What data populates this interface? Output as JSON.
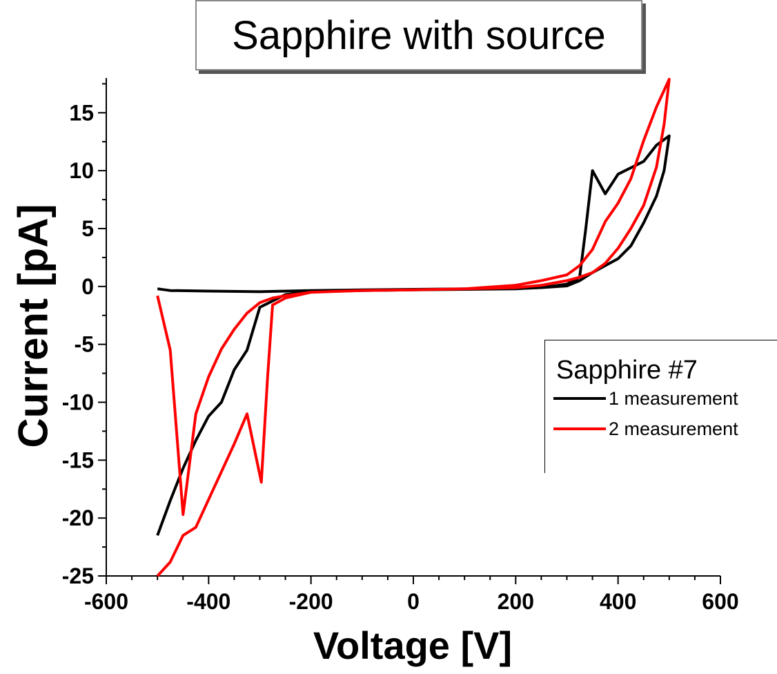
{
  "chart_data": {
    "type": "line",
    "title": "Sapphire with source",
    "xlabel": "Voltage [V]",
    "ylabel": "Current [pA]",
    "xlim": [
      -600,
      600
    ],
    "ylim": [
      -25,
      18
    ],
    "xticks": [
      -600,
      -400,
      -200,
      0,
      200,
      400,
      600
    ],
    "xtick_labels": [
      "-600",
      "-400",
      "-200",
      "0",
      "200",
      "400",
      "600"
    ],
    "yticks": [
      -25,
      -20,
      -15,
      -10,
      -5,
      0,
      5,
      10,
      15
    ],
    "ytick_labels": [
      "-25",
      "-20",
      "-15",
      "-10",
      "-5",
      "0",
      "5",
      "10",
      "15"
    ],
    "grid": false,
    "legend": {
      "title": "Sapphire #7",
      "position": "right"
    },
    "series": [
      {
        "name": "1 measurement",
        "color": "#000000",
        "points": [
          [
            -500,
            -0.2
          ],
          [
            -475,
            -0.35
          ],
          [
            -400,
            -0.4
          ],
          [
            -300,
            -0.45
          ],
          [
            -200,
            -0.35
          ],
          [
            -100,
            -0.3
          ],
          [
            0,
            -0.25
          ],
          [
            100,
            -0.2
          ],
          [
            200,
            -0.15
          ],
          [
            250,
            -0.1
          ],
          [
            300,
            0.2
          ],
          [
            325,
            0.8
          ],
          [
            337,
            5.0
          ],
          [
            350,
            10.0
          ],
          [
            375,
            8.0
          ],
          [
            400,
            9.7
          ],
          [
            450,
            10.8
          ],
          [
            475,
            12.2
          ],
          [
            500,
            13.0
          ],
          [
            490,
            10.0
          ],
          [
            475,
            7.8
          ],
          [
            450,
            5.5
          ],
          [
            425,
            3.5
          ],
          [
            400,
            2.4
          ],
          [
            375,
            1.8
          ],
          [
            350,
            1.2
          ],
          [
            325,
            0.5
          ],
          [
            300,
            0.05
          ],
          [
            250,
            -0.1
          ],
          [
            200,
            -0.2
          ],
          [
            100,
            -0.25
          ],
          [
            0,
            -0.3
          ],
          [
            -100,
            -0.35
          ],
          [
            -200,
            -0.45
          ],
          [
            -250,
            -0.7
          ],
          [
            -300,
            -1.8
          ],
          [
            -325,
            -5.5
          ],
          [
            -350,
            -7.2
          ],
          [
            -375,
            -10.0
          ],
          [
            -400,
            -11.2
          ],
          [
            -425,
            -13.3
          ],
          [
            -450,
            -15.7
          ],
          [
            -475,
            -18.5
          ],
          [
            -500,
            -21.5
          ]
        ]
      },
      {
        "name": "2 measurement",
        "color": "#ff0000",
        "points": [
          [
            -500,
            -0.8
          ],
          [
            -475,
            -5.5
          ],
          [
            -450,
            -19.7
          ],
          [
            -425,
            -11.0
          ],
          [
            -400,
            -7.8
          ],
          [
            -375,
            -5.4
          ],
          [
            -350,
            -3.7
          ],
          [
            -325,
            -2.3
          ],
          [
            -300,
            -1.4
          ],
          [
            -275,
            -1.0
          ],
          [
            -250,
            -0.8
          ],
          [
            -200,
            -0.5
          ],
          [
            -100,
            -0.35
          ],
          [
            0,
            -0.3
          ],
          [
            100,
            -0.2
          ],
          [
            200,
            0.1
          ],
          [
            250,
            0.5
          ],
          [
            300,
            1.0
          ],
          [
            325,
            1.8
          ],
          [
            350,
            3.2
          ],
          [
            375,
            5.6
          ],
          [
            400,
            7.2
          ],
          [
            425,
            9.3
          ],
          [
            450,
            12.6
          ],
          [
            475,
            15.5
          ],
          [
            500,
            17.9
          ],
          [
            490,
            14.0
          ],
          [
            475,
            10.3
          ],
          [
            450,
            7.0
          ],
          [
            425,
            5.0
          ],
          [
            400,
            3.3
          ],
          [
            375,
            2.0
          ],
          [
            350,
            1.2
          ],
          [
            325,
            0.8
          ],
          [
            300,
            0.5
          ],
          [
            250,
            0.1
          ],
          [
            200,
            -0.1
          ],
          [
            100,
            -0.2
          ],
          [
            0,
            -0.3
          ],
          [
            -100,
            -0.35
          ],
          [
            -200,
            -0.5
          ],
          [
            -250,
            -1.0
          ],
          [
            -275,
            -1.6
          ],
          [
            -285,
            -8.0
          ],
          [
            -297,
            -16.9
          ],
          [
            -325,
            -11.0
          ],
          [
            -350,
            -13.6
          ],
          [
            -375,
            -16.0
          ],
          [
            -400,
            -18.4
          ],
          [
            -425,
            -20.8
          ],
          [
            -450,
            -21.5
          ],
          [
            -475,
            -23.8
          ],
          [
            -500,
            -25.0
          ]
        ]
      }
    ]
  }
}
